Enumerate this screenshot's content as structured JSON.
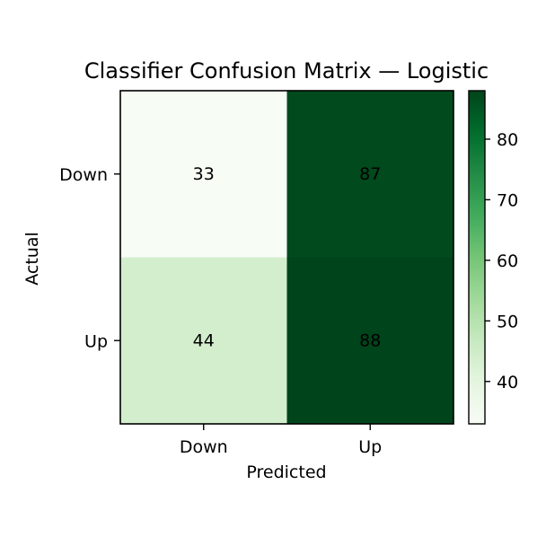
{
  "chart_data": {
    "type": "heatmap",
    "title": "Classifier Confusion Matrix — Logistic",
    "xlabel": "Predicted",
    "ylabel": "Actual",
    "x_categories": [
      "Down",
      "Up"
    ],
    "y_categories": [
      "Down",
      "Up"
    ],
    "values": [
      [
        33,
        87
      ],
      [
        44,
        88
      ]
    ],
    "colormap": "Greens",
    "color_range": [
      33,
      88
    ],
    "colorbar": {
      "ticks": [
        40,
        50,
        60,
        70,
        80
      ],
      "tick_labels": [
        "40",
        "50",
        "60",
        "70",
        "80"
      ]
    },
    "grid": false,
    "legend": "none"
  }
}
